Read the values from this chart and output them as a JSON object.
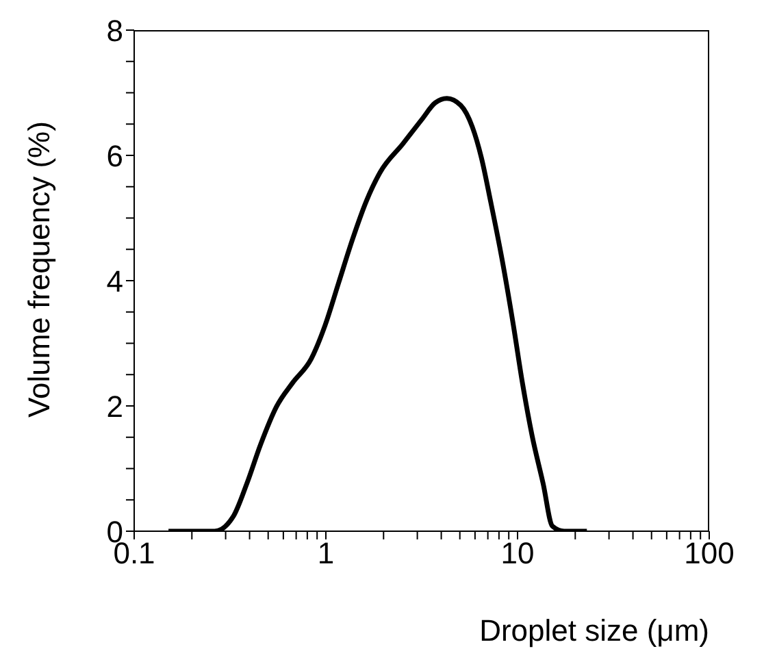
{
  "chart_data": {
    "type": "line",
    "xlabel": "Droplet size (μm)",
    "ylabel": "Volume frequency (%)",
    "log": "x",
    "marker": "none",
    "line_style": "solid",
    "color": "#000000",
    "x": [
      0.151,
      0.263,
      0.328,
      0.387,
      0.456,
      0.553,
      0.671,
      0.838,
      0.989,
      1.167,
      1.377,
      1.626,
      1.919,
      2.53,
      3.16,
      3.72,
      4.28,
      5.05,
      5.8,
      6.48,
      7.23,
      8.29,
      9.52,
      10.6,
      11.9,
      13.6,
      15.2,
      17.5,
      23
    ],
    "values": [
      0,
      0,
      0.23,
      0.76,
      1.38,
      1.99,
      2.37,
      2.75,
      3.28,
      3.97,
      4.66,
      5.27,
      5.73,
      6.19,
      6.57,
      6.84,
      6.91,
      6.8,
      6.46,
      5.96,
      5.27,
      4.35,
      3.28,
      2.37,
      1.53,
      0.76,
      0.08,
      0,
      0
    ],
    "xlim": [
      0.1,
      100
    ],
    "xticks": [
      0.1,
      {
        "value": 0.2,
        "label": null
      },
      {
        "value": 0.3,
        "label": null
      },
      {
        "value": 0.4,
        "label": null
      },
      {
        "value": 0.5,
        "label": null
      },
      {
        "value": 0.6,
        "label": null
      },
      {
        "value": 0.7,
        "label": null
      },
      {
        "value": 0.8,
        "label": null
      },
      {
        "value": 0.9,
        "label": null
      },
      1,
      {
        "value": 2,
        "label": null
      },
      {
        "value": 3,
        "label": null
      },
      {
        "value": 4,
        "label": null
      },
      {
        "value": 5,
        "label": null
      },
      {
        "value": 6,
        "label": null
      },
      {
        "value": 7,
        "label": null
      },
      {
        "value": 8,
        "label": null
      },
      {
        "value": 9,
        "label": null
      },
      10,
      {
        "value": 20,
        "label": null
      },
      {
        "value": 30,
        "label": null
      },
      {
        "value": 40,
        "label": null
      },
      {
        "value": 50,
        "label": null
      },
      {
        "value": 60,
        "label": null
      },
      {
        "value": 70,
        "label": null
      },
      {
        "value": 80,
        "label": null
      },
      {
        "value": 90,
        "label": null
      },
      100
    ],
    "ylim": [
      0,
      8
    ],
    "yticks": [
      0,
      {
        "value": 0.5,
        "label": null
      },
      {
        "value": 1,
        "label": null
      },
      {
        "value": 1.5,
        "label": null
      },
      2,
      {
        "value": 2.5,
        "label": null
      },
      {
        "value": 3,
        "label": null
      },
      {
        "value": 3.5,
        "label": null
      },
      4,
      {
        "value": 4.5,
        "label": null
      },
      {
        "value": 5,
        "label": null
      },
      {
        "value": 5.5,
        "label": null
      },
      6,
      {
        "value": 6.5,
        "label": null
      },
      {
        "value": 7,
        "label": null
      },
      {
        "value": 7.5,
        "label": null
      },
      8
    ]
  }
}
